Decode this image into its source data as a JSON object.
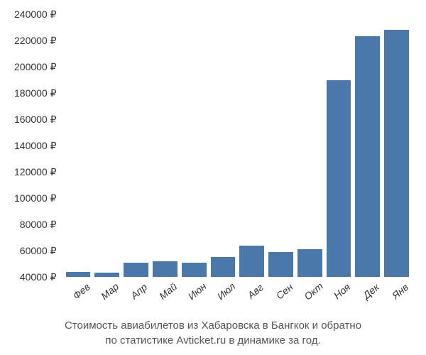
{
  "chart": {
    "type": "bar",
    "categories": [
      "Фев",
      "Мар",
      "Апр",
      "Май",
      "Июн",
      "Июл",
      "Авг",
      "Сен",
      "Окт",
      "Ноя",
      "Дек",
      "Янв"
    ],
    "values": [
      44000,
      43000,
      51000,
      52000,
      51000,
      55000,
      64000,
      59000,
      61000,
      190000,
      223000,
      228000
    ],
    "bar_color": "#4a78ab",
    "ylim": [
      40000,
      240000
    ],
    "ytick_step": 20000,
    "yticks": [
      "40000 ₽",
      "60000 ₽",
      "80000 ₽",
      "100000 ₽",
      "120000 ₽",
      "140000 ₽",
      "160000 ₽",
      "180000 ₽",
      "200000 ₽",
      "220000 ₽",
      "240000 ₽"
    ],
    "background_color": "#ffffff",
    "tick_fontsize": 14,
    "tick_color": "#333333",
    "bar_gap": 6,
    "x_tick_rotation": -40
  },
  "caption": {
    "line1": "Стоимость авиабилетов из Хабаровска в Бангкок и обратно",
    "line2": "по статистике Avticket.ru в динамике за год.",
    "fontsize": 15,
    "color": "#555555"
  }
}
